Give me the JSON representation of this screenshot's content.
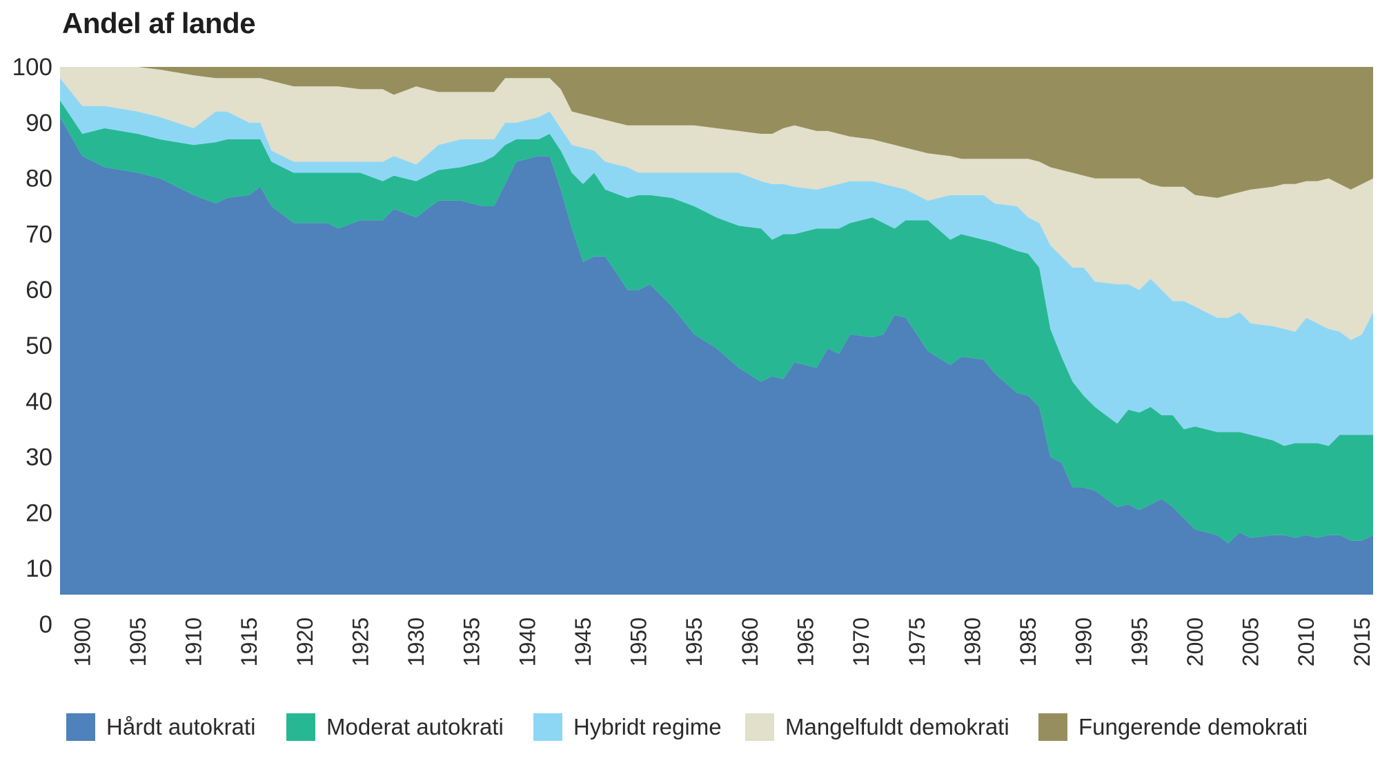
{
  "chart_data": {
    "type": "area",
    "stacked": true,
    "title": "Andel af lande",
    "xlabel": "",
    "ylabel": "",
    "ylim": [
      0,
      100
    ],
    "yticks": [
      "0",
      "10",
      "20",
      "30",
      "40",
      "50",
      "60",
      "70",
      "80",
      "90",
      "100"
    ],
    "xticks": [
      "1900",
      "1905",
      "1910",
      "1915",
      "1920",
      "1925",
      "1930",
      "1935",
      "1940",
      "1945",
      "1950",
      "1955",
      "1960",
      "1965",
      "1970",
      "1975",
      "1980",
      "1985",
      "1990",
      "1995",
      "2000",
      "2005",
      "2010",
      "2015"
    ],
    "legend_position": "bottom",
    "grid": false,
    "x": [
      1898,
      1900,
      1902,
      1905,
      1907,
      1910,
      1912,
      1913,
      1915,
      1916,
      1917,
      1919,
      1922,
      1923,
      1925,
      1927,
      1928,
      1930,
      1932,
      1934,
      1936,
      1937,
      1938,
      1939,
      1941,
      1942,
      1943,
      1944,
      1945,
      1946,
      1947,
      1949,
      1950,
      1951,
      1953,
      1955,
      1957,
      1959,
      1961,
      1962,
      1963,
      1964,
      1966,
      1967,
      1968,
      1969,
      1971,
      1972,
      1973,
      1974,
      1976,
      1978,
      1979,
      1981,
      1982,
      1984,
      1985,
      1986,
      1987,
      1988,
      1989,
      1990,
      1991,
      1993,
      1994,
      1995,
      1996,
      1997,
      1998,
      1999,
      2000,
      2002,
      2003,
      2004,
      2005,
      2007,
      2008,
      2009,
      2010,
      2011,
      2012,
      2013,
      2014,
      2015,
      2016
    ],
    "series": [
      {
        "name": "Hårdt autokrati",
        "color": "#4f81bb",
        "values": [
          91,
          84,
          82,
          81,
          80,
          77,
          75.5,
          76.5,
          77,
          78.5,
          75,
          72,
          72,
          71,
          72.5,
          72.5,
          74.5,
          73,
          76,
          76,
          75,
          75,
          79,
          83,
          84,
          84,
          78,
          71,
          65,
          66,
          66,
          60,
          60,
          61,
          57,
          52,
          49.5,
          46,
          43.5,
          44.5,
          44,
          47,
          46,
          49.5,
          48.5,
          52,
          51.5,
          52,
          55.5,
          55,
          49,
          46.5,
          48,
          47.5,
          45,
          41.5,
          41,
          39,
          30,
          29,
          24.5,
          24.5,
          24,
          21,
          21.5,
          20.5,
          21.5,
          22.5,
          21,
          19,
          17,
          16,
          14.5,
          16.5,
          15.5,
          16,
          16,
          15.5,
          16,
          15.5,
          16,
          16,
          15,
          15,
          16
        ]
      },
      {
        "name": "Moderat autokrati",
        "color": "#27b893",
        "values": [
          3,
          4,
          7,
          7,
          7,
          9,
          11,
          10.5,
          10,
          8.5,
          8,
          9,
          9,
          10,
          8.5,
          7,
          6,
          6.5,
          5.5,
          6,
          8,
          9,
          7,
          4,
          3,
          4,
          7,
          10,
          14,
          15,
          12,
          16.5,
          17,
          16,
          19.5,
          23,
          23.5,
          25.5,
          27.5,
          24.5,
          26,
          23,
          25,
          21.5,
          22.5,
          20,
          21.5,
          20,
          15.5,
          17.5,
          23.5,
          22.5,
          22,
          21.5,
          23.5,
          25.5,
          25.5,
          25,
          23,
          19,
          19,
          16.5,
          15,
          15,
          17,
          17.5,
          17.5,
          15,
          16.5,
          16,
          18.5,
          18.5,
          20,
          18,
          18.5,
          17,
          16,
          17,
          16.5,
          17,
          16,
          18,
          19,
          19,
          18
        ]
      },
      {
        "name": "Hybridt regime",
        "color": "#8dd7f5",
        "values": [
          4,
          5,
          4,
          4,
          4,
          3,
          5.5,
          5,
          3,
          3,
          2,
          2,
          2,
          2,
          2,
          3.5,
          3.5,
          3,
          4.5,
          5,
          4,
          3,
          4,
          3,
          4,
          4,
          4,
          5,
          6.5,
          4,
          5,
          5.5,
          4,
          4,
          4.5,
          6,
          8,
          9.5,
          8.5,
          10,
          9,
          8.5,
          7,
          7.5,
          8,
          7.5,
          6.5,
          7,
          7.5,
          5.5,
          3.5,
          8,
          7,
          8,
          7,
          8,
          6.5,
          8,
          15,
          18,
          20.5,
          23,
          22.5,
          25,
          22.5,
          22,
          23,
          22.5,
          20.5,
          23,
          21.5,
          20.5,
          20.5,
          21.5,
          20,
          20.5,
          21,
          20,
          22.5,
          21.5,
          21,
          18.5,
          17,
          18,
          22
        ]
      },
      {
        "name": "Mangelfuldt demokrati",
        "color": "#e2dfcb",
        "values": [
          2,
          7,
          7,
          8,
          8.5,
          9.5,
          6,
          6,
          8,
          8,
          12.5,
          13.5,
          13.5,
          13.5,
          13,
          13,
          11,
          14,
          9.5,
          8.5,
          8.5,
          8.5,
          8,
          8,
          7,
          6,
          7,
          6,
          6,
          6,
          7.5,
          7.5,
          8.5,
          8.5,
          8.5,
          8.5,
          8,
          7.5,
          8.5,
          9,
          10,
          11,
          10.5,
          10,
          9,
          8,
          7.5,
          7.5,
          7.5,
          7.5,
          8.5,
          7,
          6.5,
          6.5,
          8,
          8.5,
          10.5,
          11,
          14,
          15.5,
          17,
          16.5,
          18.5,
          19,
          19,
          20,
          17,
          18.5,
          20.5,
          20.5,
          20,
          21.5,
          22,
          21.5,
          24,
          25,
          26,
          26.5,
          24.5,
          25.5,
          27,
          26.5,
          27,
          27,
          24
        ]
      },
      {
        "name": "Fungerende demokrati",
        "color": "#968f5d",
        "values": [
          0,
          0,
          0,
          0,
          0.5,
          1.5,
          2,
          2,
          2,
          2,
          2.5,
          3.5,
          3.5,
          3.5,
          4,
          4,
          5,
          3.5,
          4.5,
          4.5,
          4.5,
          4.5,
          2,
          2,
          2,
          2,
          4,
          8,
          8.5,
          9,
          9.5,
          10.5,
          10.5,
          10.5,
          10.5,
          10.5,
          11,
          11.5,
          12,
          12,
          11,
          10.5,
          11.5,
          11.5,
          12,
          12.5,
          13,
          13.5,
          14,
          14.5,
          15.5,
          16,
          16.5,
          16.5,
          16.5,
          16.5,
          16.5,
          17,
          18,
          18.5,
          19,
          19.5,
          20,
          20,
          20,
          20,
          21,
          21.5,
          21.5,
          21.5,
          23,
          23.5,
          23,
          22.5,
          22,
          21.5,
          21,
          21,
          20.5,
          20.5,
          20,
          21,
          22,
          21,
          20
        ]
      }
    ]
  }
}
